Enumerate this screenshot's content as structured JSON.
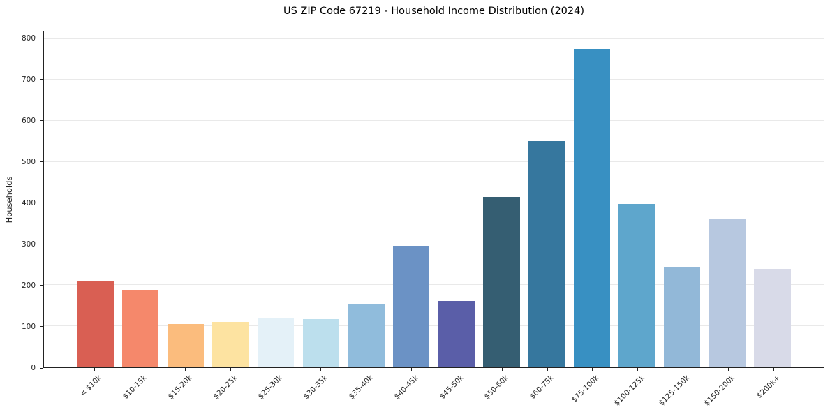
{
  "title": "US ZIP Code 67219 - Household Income Distribution (2024)",
  "chart_data": {
    "type": "bar",
    "title": "US ZIP Code 67219 - Household Income Distribution (2024)",
    "xlabel": "",
    "ylabel": "Households",
    "categories": [
      "< $10k",
      "$10-15k",
      "$15-20k",
      "$20-25k",
      "$25-30k",
      "$30-35k",
      "$35-40k",
      "$40-45k",
      "$45-50k",
      "$50-60k",
      "$60-75k",
      "$75-100k",
      "$100-125k",
      "$125-150k",
      "$150-200k",
      "$200k+"
    ],
    "values": [
      210,
      187,
      105,
      111,
      121,
      117,
      154,
      296,
      162,
      415,
      551,
      776,
      398,
      244,
      360,
      239
    ],
    "bar_colors": [
      "#d95f53",
      "#f5886b",
      "#fbbc7d",
      "#fde3a1",
      "#e4f1f8",
      "#bcdfed",
      "#90bcdc",
      "#6b92c5",
      "#5a5ea8",
      "#355e72",
      "#36779e",
      "#3890c2",
      "#5ea6cc",
      "#92b8d8",
      "#b7c8e0",
      "#d8dae8"
    ],
    "ylim": [
      0,
      818
    ],
    "yticks": [
      0,
      100,
      200,
      300,
      400,
      500,
      600,
      700,
      800
    ],
    "grid": true,
    "legend": false,
    "x_tick_rotation": 45,
    "background_color": "#ffffff",
    "grid_color": "#e9e9e9",
    "spine_color": "#222222"
  }
}
